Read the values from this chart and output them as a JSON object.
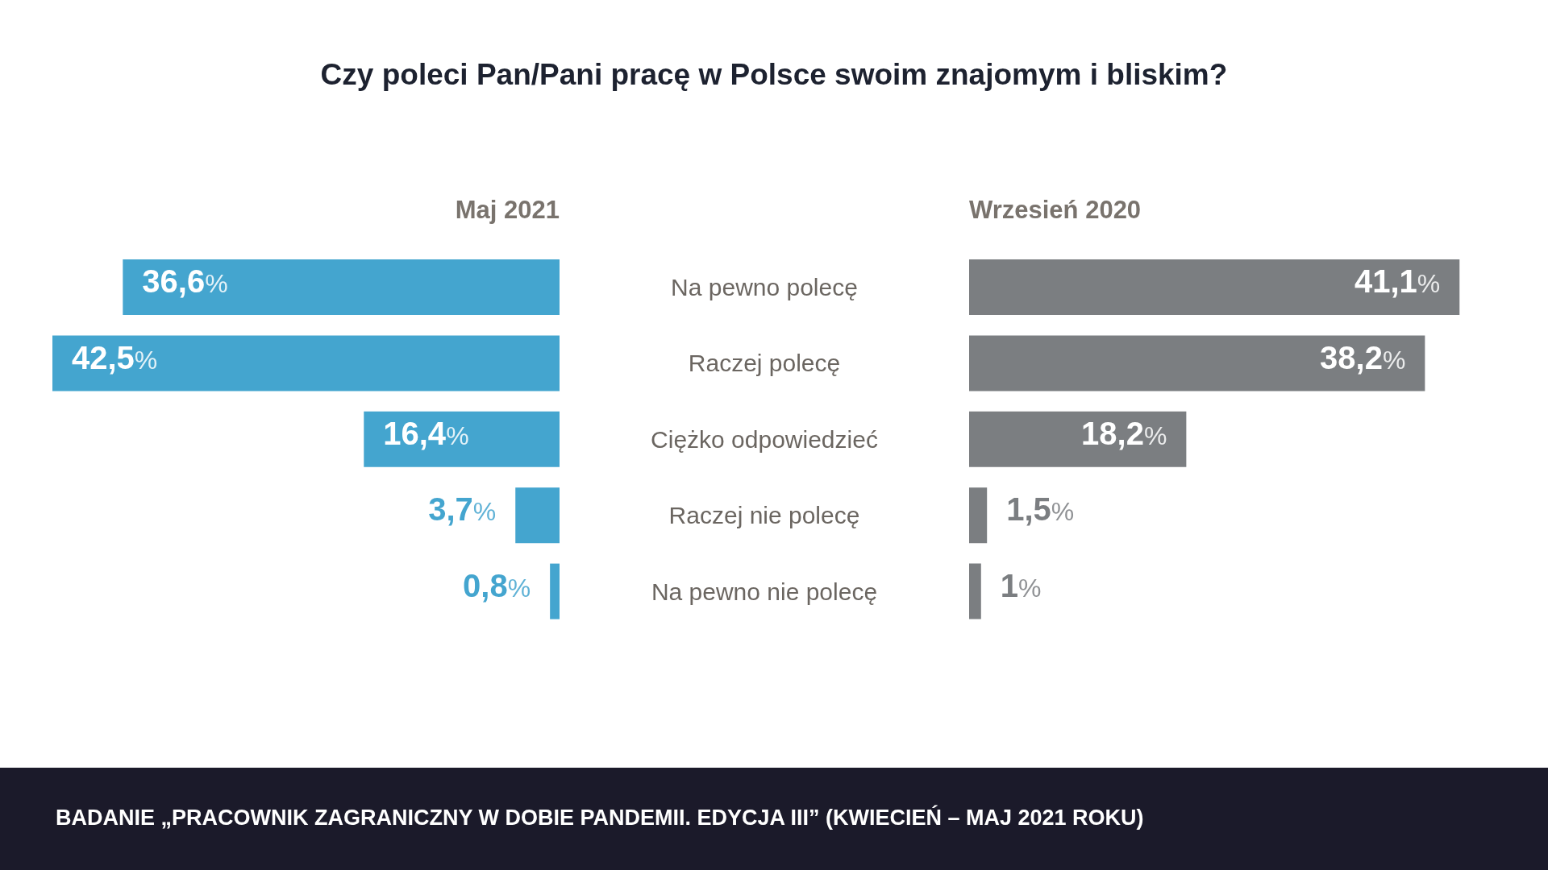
{
  "chart_data": [
    {
      "type": "bar",
      "orientation": "horizontal",
      "title": "Czy poleci Pan/Pani pracę w Polsce swoim znajomym i bliskim?",
      "categories": [
        "Na pewno polecę",
        "Raczej polecę",
        "Ciężko odpowiedzieć",
        "Raczej nie polecę",
        "Na pewno nie polecę"
      ],
      "series": [
        {
          "name": "Maj 2021",
          "color": "#44a5cf",
          "values": [
            36.6,
            42.5,
            16.4,
            3.7,
            0.8
          ],
          "value_labels": [
            "36,6%",
            "42,5%",
            "16,4%",
            "3,7%",
            "0,8%"
          ]
        }
      ],
      "tick_labels": false,
      "annotations": [
        "BADANIE „PRACOWNIK ZAGRANICZNY W DOBIE PANDEMII. EDYCJA III” (KWIECIEŃ – MAJ 2021 ROKU)"
      ]
    },
    {
      "type": "bar",
      "orientation": "horizontal",
      "categories": [
        "Na pewno polecę",
        "Raczej polecę",
        "Ciężko odpowiedzieć",
        "Raczej nie polecę",
        "Na pewno nie polecę"
      ],
      "series": [
        {
          "name": "Wrzesień 2020",
          "color": "#7b7e81",
          "values": [
            41.1,
            38.2,
            18.2,
            1.5,
            1
          ],
          "value_labels": [
            "41,1%",
            "38,2%",
            "18,2%",
            "1,5%",
            "1%"
          ]
        }
      ],
      "tick_labels": "y"
    }
  ]
}
